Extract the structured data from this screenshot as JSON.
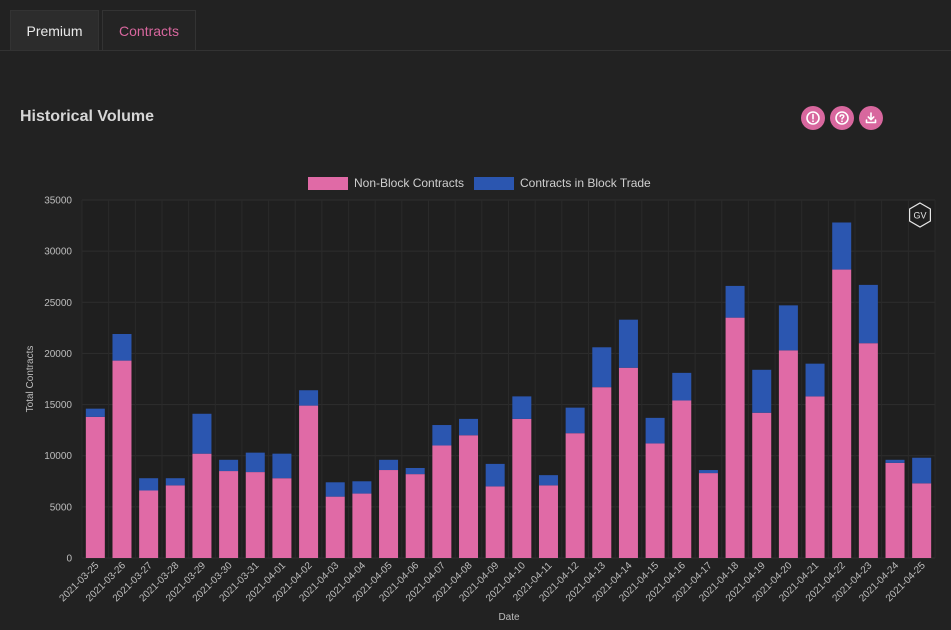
{
  "tabs": [
    {
      "label": "Premium",
      "active": false
    },
    {
      "label": "Contracts",
      "active": true
    }
  ],
  "section": {
    "title": "Historical Volume",
    "actions": [
      {
        "name": "info-button",
        "icon": "alert-circle-icon"
      },
      {
        "name": "help-button",
        "icon": "question-circle-icon"
      },
      {
        "name": "download-button",
        "icon": "download-icon"
      }
    ]
  },
  "colors": {
    "accent": "#d8679e",
    "non_block": "#e06aa6",
    "block": "#2b56b0",
    "background": "#222222"
  },
  "chart_data": {
    "type": "bar",
    "stacked": true,
    "title": "",
    "xlabel": "Date",
    "ylabel": "Total Contracts",
    "ylim": [
      0,
      35000
    ],
    "yticks": [
      0,
      5000,
      10000,
      15000,
      20000,
      25000,
      30000,
      35000
    ],
    "legend_position": "top-center",
    "grid": true,
    "watermark": "GV",
    "categories": [
      "2021-03-25",
      "2021-03-26",
      "2021-03-27",
      "2021-03-28",
      "2021-03-29",
      "2021-03-30",
      "2021-03-31",
      "2021-04-01",
      "2021-04-02",
      "2021-04-03",
      "2021-04-04",
      "2021-04-05",
      "2021-04-06",
      "2021-04-07",
      "2021-04-08",
      "2021-04-09",
      "2021-04-10",
      "2021-04-11",
      "2021-04-12",
      "2021-04-13",
      "2021-04-14",
      "2021-04-15",
      "2021-04-16",
      "2021-04-17",
      "2021-04-18",
      "2021-04-19",
      "2021-04-20",
      "2021-04-21",
      "2021-04-22",
      "2021-04-23",
      "2021-04-24",
      "2021-04-25"
    ],
    "series": [
      {
        "name": "Non-Block Contracts",
        "color": "#e06aa6",
        "values": [
          13800,
          19300,
          6600,
          7100,
          10200,
          8500,
          8400,
          7800,
          14900,
          6000,
          6300,
          8600,
          8200,
          11000,
          12000,
          7000,
          13600,
          7100,
          12200,
          16700,
          18600,
          11200,
          15400,
          8300,
          23500,
          14200,
          20300,
          15800,
          28200,
          21000,
          9300,
          7300
        ]
      },
      {
        "name": "Contracts in Block Trade",
        "color": "#2b56b0",
        "values": [
          800,
          2600,
          1200,
          700,
          3900,
          1100,
          1900,
          2400,
          1500,
          1400,
          1200,
          1000,
          600,
          2000,
          1600,
          2200,
          2200,
          1000,
          2500,
          3900,
          4700,
          2500,
          2700,
          300,
          3100,
          4200,
          4400,
          3200,
          4600,
          5700,
          300,
          2500
        ]
      }
    ]
  }
}
